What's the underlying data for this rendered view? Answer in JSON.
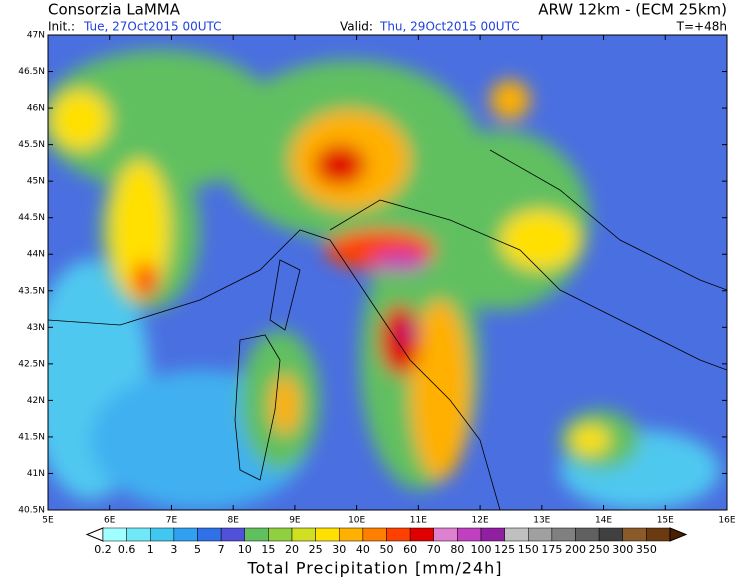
{
  "header": {
    "title": "Consorzia LaMMA",
    "model": "ARW 12km - (ECM 25km)",
    "init_label": "Init.:",
    "init": "Tue, 27Oct2015 00UTC",
    "valid_label": "Valid:",
    "valid": "Thu, 29Oct2015 00UTC",
    "lead": "T=+48h"
  },
  "map": {
    "lat_ticks": [
      {
        "value": 47,
        "label": "47N"
      },
      {
        "value": 46.5,
        "label": "46.5N"
      },
      {
        "value": 46,
        "label": "46N"
      },
      {
        "value": 45.5,
        "label": "45.5N"
      },
      {
        "value": 45,
        "label": "45N"
      },
      {
        "value": 44.5,
        "label": "44.5N"
      },
      {
        "value": 44,
        "label": "44N"
      },
      {
        "value": 43.5,
        "label": "43.5N"
      },
      {
        "value": 43,
        "label": "43N"
      },
      {
        "value": 42.5,
        "label": "42.5N"
      },
      {
        "value": 42,
        "label": "42N"
      },
      {
        "value": 41.5,
        "label": "41.5N"
      },
      {
        "value": 41,
        "label": "41N"
      },
      {
        "value": 40.5,
        "label": "40.5N"
      }
    ],
    "lon_ticks": [
      {
        "value": 5,
        "label": "5E"
      },
      {
        "value": 6,
        "label": "6E"
      },
      {
        "value": 7,
        "label": "7E"
      },
      {
        "value": 8,
        "label": "8E"
      },
      {
        "value": 9,
        "label": "9E"
      },
      {
        "value": 10,
        "label": "10E"
      },
      {
        "value": 11,
        "label": "11E"
      },
      {
        "value": 12,
        "label": "12E"
      },
      {
        "value": 13,
        "label": "13E"
      },
      {
        "value": 14,
        "label": "14E"
      },
      {
        "value": 15,
        "label": "15E"
      },
      {
        "value": 16,
        "label": "16E"
      }
    ],
    "latlim": [
      40.5,
      47
    ],
    "lonlim": [
      5,
      16
    ]
  },
  "colorbar": {
    "labels": [
      "0.2",
      "0.6",
      "1",
      "3",
      "5",
      "7",
      "10",
      "15",
      "20",
      "25",
      "30",
      "40",
      "50",
      "60",
      "70",
      "80",
      "100",
      "125",
      "150",
      "175",
      "200",
      "250",
      "300",
      "350"
    ],
    "colors": [
      "#ffffff",
      "#a0ffff",
      "#70e8f8",
      "#40c8f0",
      "#30a0f0",
      "#3070e8",
      "#5050d8",
      "#60c060",
      "#90d040",
      "#d0e020",
      "#ffe000",
      "#ffb000",
      "#ff8000",
      "#ff4000",
      "#e00000",
      "#e080d0",
      "#c040c0",
      "#9020a0",
      "#c0c0c0",
      "#a0a0a0",
      "#808080",
      "#606060",
      "#404040",
      "#8b5a2b",
      "#6b3a10",
      "#4a2000"
    ],
    "caption": "Total Precipitation [mm/24h]"
  }
}
